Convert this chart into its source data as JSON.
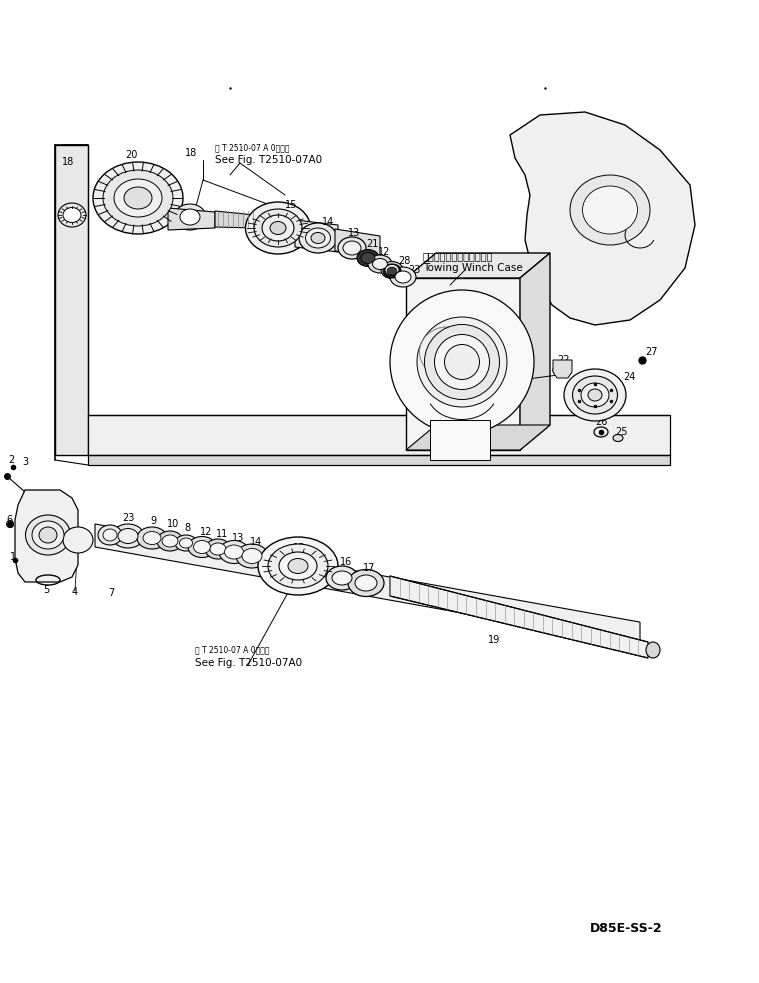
{
  "bg_color": "#ffffff",
  "fig_width": 7.59,
  "fig_height": 9.83,
  "dpi": 100,
  "bottom_right_text": "D85E-SS-2",
  "see_fig_text_upper": "See Fig. T2510-07A0",
  "see_fig_jp_upper": "第 T 2510-07 A 0図参照",
  "see_fig_text_lower": "See Fig. T2510-07A0",
  "see_fig_jp_lower": "第 T 2510-07 A 0図参照",
  "towing_winch_jp": "トーイングウィンチケース",
  "towing_winch_en": "Towing Winch Case",
  "lc": "#000000",
  "fc_light": "#f5f5f5",
  "fc_mid": "#e0e0e0",
  "fc_dark": "#c0c0c0",
  "fc_black": "#303030"
}
